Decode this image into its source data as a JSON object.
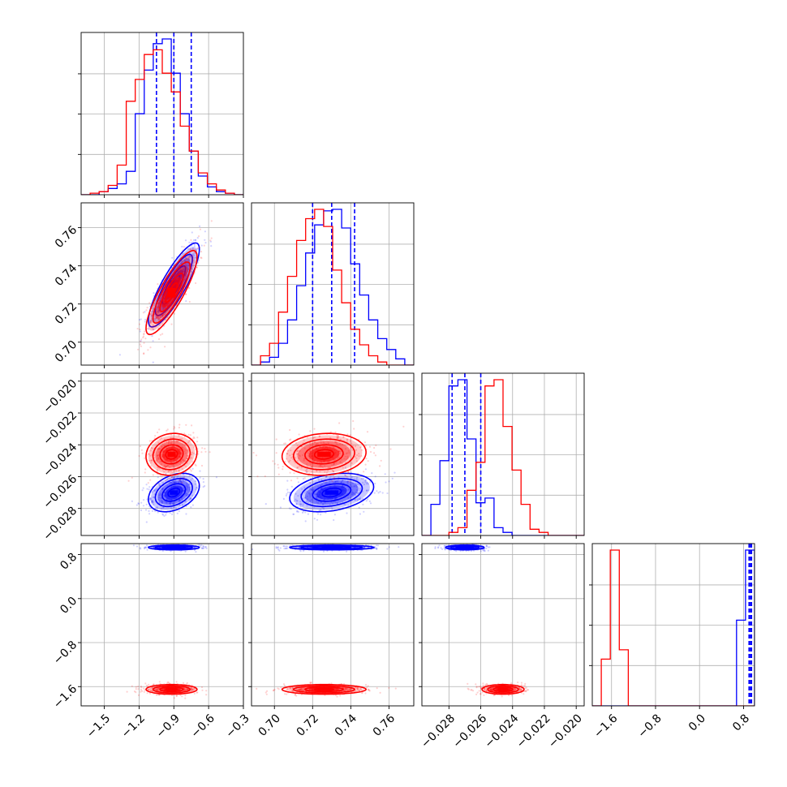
{
  "figure": {
    "type": "corner-plot"
  },
  "chart_data": {
    "type": "corner",
    "parameters": [
      {
        "index": 0,
        "ticks": [
          "−1.5",
          "−1.2",
          "−0.9",
          "−0.6",
          "−0.3"
        ],
        "tick_values": [
          -1.5,
          -1.2,
          -0.9,
          -0.6,
          -0.3
        ],
        "range": [
          -1.7,
          -0.3
        ]
      },
      {
        "index": 1,
        "ticks": [
          "0.70",
          "0.72",
          "0.74",
          "0.76"
        ],
        "tick_values": [
          0.7,
          0.72,
          0.74,
          0.76
        ],
        "range": [
          0.688,
          0.773
        ]
      },
      {
        "index": 2,
        "ticks": [
          "−0.028",
          "−0.026",
          "−0.024",
          "−0.022",
          "−0.020"
        ],
        "tick_values": [
          -0.028,
          -0.026,
          -0.024,
          -0.022,
          -0.02
        ],
        "range": [
          -0.0297,
          -0.0195
        ]
      },
      {
        "index": 3,
        "ticks": [
          "−1.6",
          "−0.8",
          "0.0",
          "0.8"
        ],
        "tick_values": [
          -1.6,
          -0.8,
          0.0,
          0.8
        ],
        "range": [
          -1.95,
          1.0
        ]
      }
    ],
    "series": [
      {
        "color": "#0000ff",
        "means": [
          -0.9,
          0.73,
          -0.027,
          0.93
        ],
        "stds": [
          0.1,
          0.01,
          0.00055,
          0.02
        ],
        "correlations": {
          "0-1": 0.85,
          "0-2": 0.35,
          "1-2": 0.3
        },
        "quantiles": [
          [
            -1.05,
            -0.9,
            -0.75
          ],
          [
            0.72,
            0.73,
            0.742
          ],
          [
            -0.0278,
            -0.027,
            -0.026
          ],
          [
            0.9,
            0.925,
            0.945
          ]
        ],
        "histograms": [
          [
            0,
            0,
            0.02,
            0.04,
            0.07,
            0.15,
            0.52,
            0.8,
            0.97,
            1.0,
            0.78,
            0.52,
            0.28,
            0.12,
            0.05,
            0.02,
            0.01,
            0
          ],
          [
            0,
            0.02,
            0.05,
            0.14,
            0.29,
            0.51,
            0.72,
            0.9,
            0.99,
            1.0,
            0.88,
            0.65,
            0.45,
            0.29,
            0.17,
            0.1,
            0.04,
            0
          ],
          [
            0,
            0.2,
            0.48,
            0.96,
            1.0,
            0.62,
            0.21,
            0.24,
            0.05,
            0.02,
            0,
            0,
            0,
            0,
            0,
            0,
            0,
            0
          ],
          [
            0,
            0,
            0,
            0,
            0,
            0,
            0,
            0,
            0,
            0,
            0,
            0,
            0,
            0,
            0,
            0,
            0.55,
            1.0
          ]
        ]
      },
      {
        "color": "#ff0000",
        "means": [
          -0.92,
          0.726,
          -0.0246,
          -1.65
        ],
        "stds": [
          0.1,
          0.01,
          0.0006,
          0.04
        ],
        "correlations": {
          "0-1": 0.85,
          "0-2": 0.1,
          "1-2": 0.1
        },
        "quantiles": null,
        "histograms": [
          [
            0,
            0.01,
            0.02,
            0.06,
            0.19,
            0.6,
            0.74,
            0.9,
            0.93,
            0.78,
            0.66,
            0.44,
            0.28,
            0.14,
            0.07,
            0.03,
            0.01,
            0
          ],
          [
            0,
            0.06,
            0.14,
            0.34,
            0.57,
            0.8,
            0.94,
            1.0,
            0.89,
            0.61,
            0.4,
            0.23,
            0.13,
            0.06,
            0.02,
            0,
            0,
            0
          ],
          [
            0,
            0,
            0,
            0.02,
            0.05,
            0.29,
            0.47,
            0.96,
            1.0,
            0.7,
            0.42,
            0.2,
            0.04,
            0.02,
            0,
            0,
            0,
            0
          ],
          [
            0,
            0.3,
            1.0,
            0.36,
            0,
            0,
            0,
            0,
            0,
            0,
            0,
            0,
            0,
            0,
            0,
            0,
            0,
            0
          ]
        ]
      }
    ],
    "grid": true
  }
}
